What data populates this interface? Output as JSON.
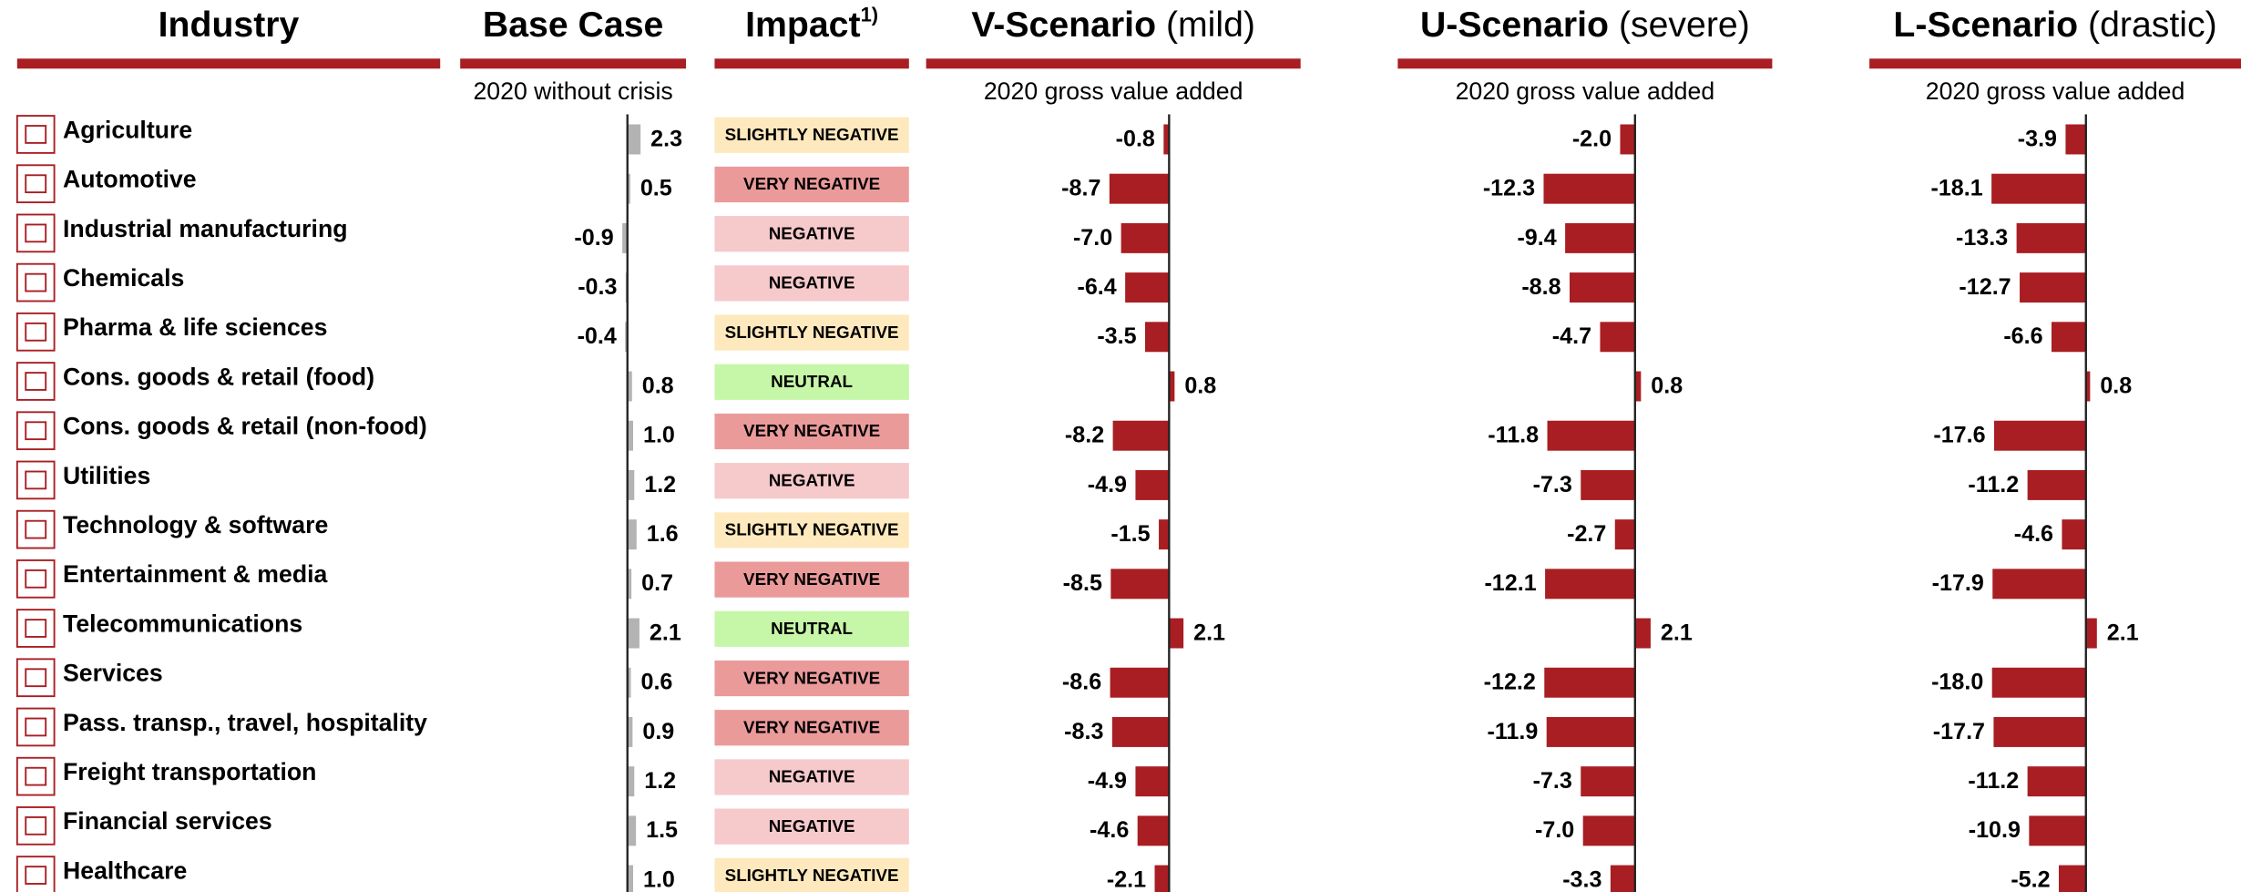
{
  "industry_header": "Industry",
  "industries": [
    "Agriculture",
    "Automotive",
    "Industrial manufacturing",
    "Chemicals",
    "Pharma & life sciences",
    "Cons. goods & retail (food)",
    "Cons. goods & retail (non-food)",
    "Utilities",
    "Technology & software",
    "Entertainment & media",
    "Telecommunications",
    "Services",
    "Pass. transp., travel, hospitality",
    "Freight transportation",
    "Financial services",
    "Healthcare"
  ],
  "impact": {
    "title": "Impact",
    "footnote": "1)",
    "labels": [
      "SLIGHTLY NEGATIVE",
      "VERY NEGATIVE",
      "NEGATIVE",
      "NEGATIVE",
      "SLIGHTLY NEGATIVE",
      "NEUTRAL",
      "VERY NEGATIVE",
      "NEGATIVE",
      "SLIGHTLY NEGATIVE",
      "VERY NEGATIVE",
      "NEUTRAL",
      "VERY NEGATIVE",
      "VERY NEGATIVE",
      "NEGATIVE",
      "NEGATIVE",
      "SLIGHTLY NEGATIVE"
    ],
    "colors": [
      "#fde9bd",
      "#eb9a9a",
      "#f6c9cb",
      "#f6c9cb",
      "#fde9bd",
      "#c6f7a8",
      "#eb9a9a",
      "#f6c9cb",
      "#fde9bd",
      "#eb9a9a",
      "#c6f7a8",
      "#eb9a9a",
      "#eb9a9a",
      "#f6c9cb",
      "#f6c9cb",
      "#fde9bd"
    ]
  },
  "chart_data": [
    {
      "type": "bar",
      "title": "Base Case",
      "subtitle": "2020 without crisis",
      "color": "#b3b3b3",
      "xlim": [
        -5,
        5
      ],
      "values": [
        2.3,
        0.5,
        -0.9,
        -0.3,
        -0.4,
        0.8,
        1.0,
        1.2,
        1.6,
        0.7,
        2.1,
        0.6,
        0.9,
        1.2,
        1.5,
        1.0
      ],
      "value_labels": [
        "2.3",
        "0.5",
        "-0.9",
        "-0.3",
        "-0.4",
        "0.8",
        "1.0",
        "1.2",
        "1.6",
        "0.7",
        "2.1",
        "0.6",
        "0.9",
        "1.2",
        "1.5",
        "1.0"
      ]
    },
    {
      "type": "bar",
      "title": "V-Scenario",
      "title_note": "(mild)",
      "subtitle": "2020 gross value added",
      "color": "#a91e22",
      "xlim": [
        -30,
        10
      ],
      "values": [
        -0.8,
        -8.7,
        -7.0,
        -6.4,
        -3.5,
        0.8,
        -8.2,
        -4.9,
        -1.5,
        -8.5,
        2.1,
        -8.6,
        -8.3,
        -4.9,
        -4.6,
        -2.1
      ],
      "value_labels": [
        "-0.8",
        "-8.7",
        "-7.0",
        "-6.4",
        "-3.5",
        "0.8",
        "-8.2",
        "-4.9",
        "-1.5",
        "-8.5",
        "2.1",
        "-8.6",
        "-8.3",
        "-4.9",
        "-4.6",
        "-2.1"
      ]
    },
    {
      "type": "bar",
      "title": "U-Scenario",
      "title_note": "(severe)",
      "subtitle": "2020 gross value added",
      "color": "#a91e22",
      "xlim": [
        -25,
        10
      ],
      "values": [
        -2.0,
        -12.3,
        -9.4,
        -8.8,
        -4.7,
        0.8,
        -11.8,
        -7.3,
        -2.7,
        -12.1,
        2.1,
        -12.2,
        -11.9,
        -7.3,
        -7.0,
        -3.3
      ],
      "value_labels": [
        "-2.0",
        "-12.3",
        "-9.4",
        "-8.8",
        "-4.7",
        "0.8",
        "-11.8",
        "-7.3",
        "-2.7",
        "-12.1",
        "2.1",
        "-12.2",
        "-11.9",
        "-7.3",
        "-7.0",
        "-3.3"
      ]
    },
    {
      "type": "bar",
      "title": "L-Scenario",
      "title_note": "(drastic)",
      "subtitle": "2020 gross value added",
      "color": "#a91e22",
      "xlim": [
        -30,
        10
      ],
      "values": [
        -3.9,
        -18.1,
        -13.3,
        -12.7,
        -6.6,
        0.8,
        -17.6,
        -11.2,
        -4.6,
        -17.9,
        2.1,
        -18.0,
        -17.7,
        -11.2,
        -10.9,
        -5.2
      ],
      "value_labels": [
        "-3.9",
        "-18.1",
        "-13.3",
        "-12.7",
        "-6.6",
        "0.8",
        "-17.6",
        "-11.2",
        "-4.6",
        "-17.9",
        "2.1",
        "-18.0",
        "-17.7",
        "-11.2",
        "-10.9",
        "-5.2"
      ]
    }
  ]
}
